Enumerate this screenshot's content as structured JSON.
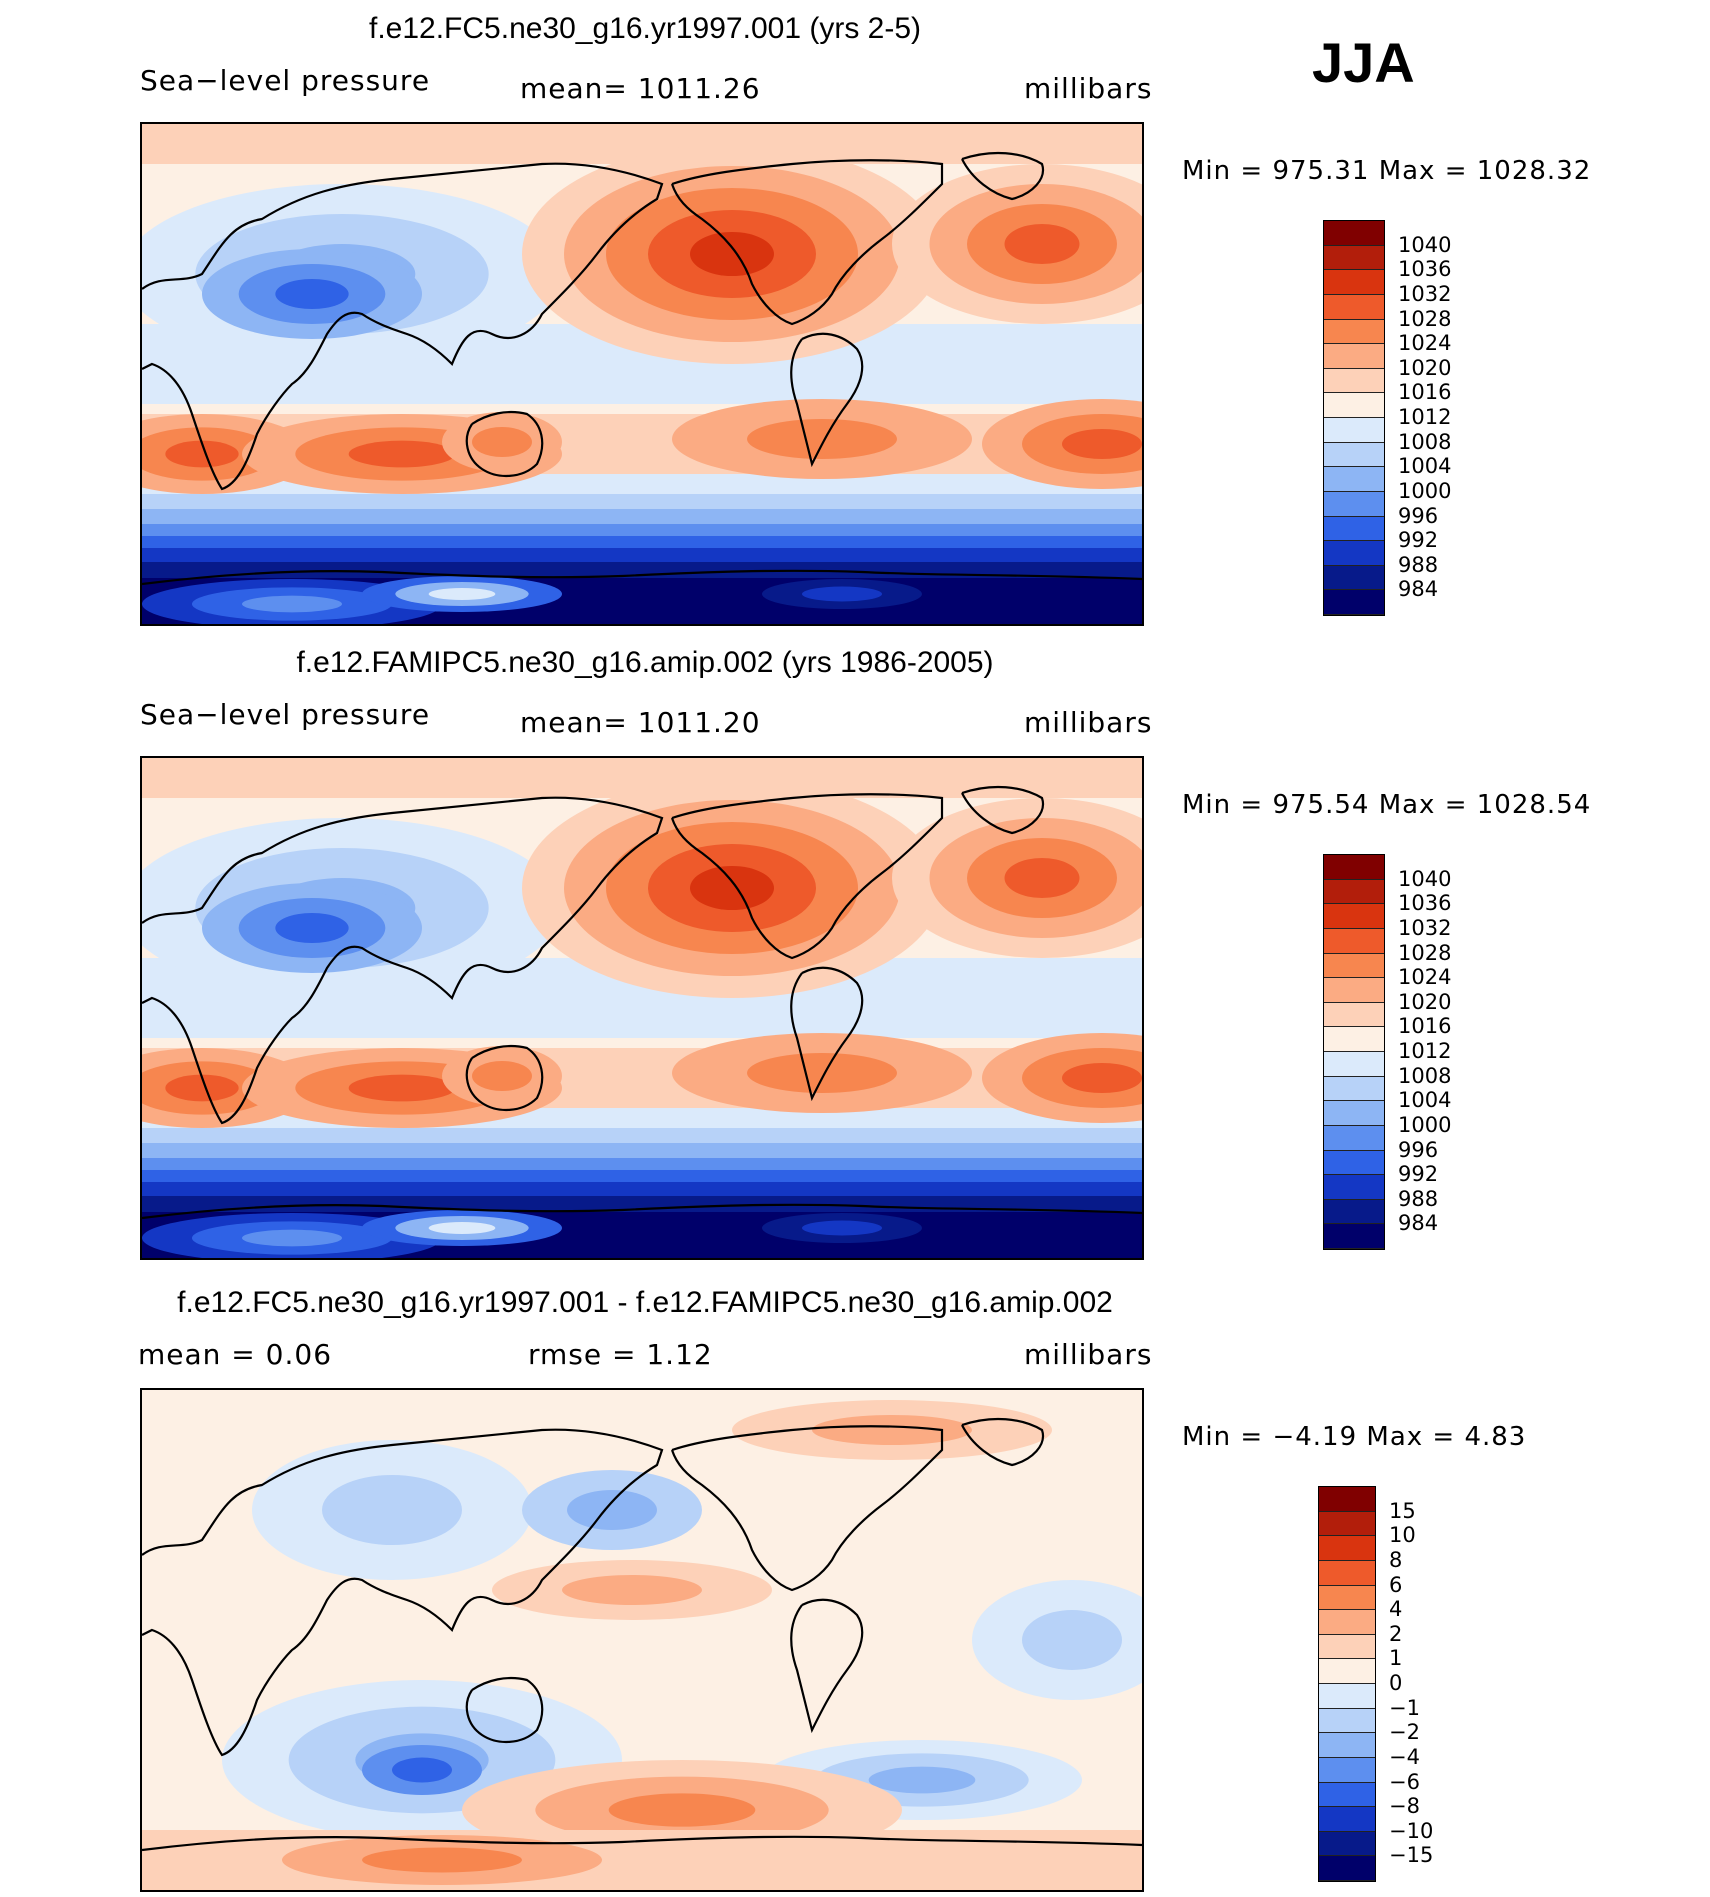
{
  "season": "JJA",
  "chart_data": [
    {
      "type": "heatmap",
      "title": "f.e12.FC5.ne30_g16.yr1997.001 (yrs 2-5)",
      "left_label": "Sea−level pressure",
      "center_label": "mean= 1011.26",
      "units": "millibars",
      "variable": "Sea-level pressure",
      "mean": 1011.26,
      "min_max_text": "Min = 975.31 Max = 1028.32",
      "min": 975.31,
      "max": 1028.32,
      "colorbar_labels": [
        "1040",
        "1036",
        "1032",
        "1028",
        "1024",
        "1020",
        "1016",
        "1012",
        "1008",
        "1004",
        "1000",
        "996",
        "992",
        "988",
        "984"
      ],
      "colorbar_colors": [
        "#800000",
        "#b21e0b",
        "#d9340f",
        "#ee5a2b",
        "#f7864f",
        "#fbab83",
        "#fdd1b8",
        "#fdf0e4",
        "#dbeafb",
        "#b7d2f8",
        "#8db5f4",
        "#5d8fef",
        "#2f62e6",
        "#1437c4",
        "#071a8a",
        "#00006a"
      ],
      "xlabel": "",
      "ylabel": ""
    },
    {
      "type": "heatmap",
      "title": "f.e12.FAMIPC5.ne30_g16.amip.002 (yrs 1986-2005)",
      "left_label": "Sea−level pressure",
      "center_label": "mean= 1011.20",
      "units": "millibars",
      "variable": "Sea-level pressure",
      "mean": 1011.2,
      "min_max_text": "Min = 975.54 Max = 1028.54",
      "min": 975.54,
      "max": 1028.54,
      "colorbar_labels": [
        "1040",
        "1036",
        "1032",
        "1028",
        "1024",
        "1020",
        "1016",
        "1012",
        "1008",
        "1004",
        "1000",
        "996",
        "992",
        "988",
        "984"
      ],
      "colorbar_colors": [
        "#800000",
        "#b21e0b",
        "#d9340f",
        "#ee5a2b",
        "#f7864f",
        "#fbab83",
        "#fdd1b8",
        "#fdf0e4",
        "#dbeafb",
        "#b7d2f8",
        "#8db5f4",
        "#5d8fef",
        "#2f62e6",
        "#1437c4",
        "#071a8a",
        "#00006a"
      ],
      "xlabel": "",
      "ylabel": ""
    },
    {
      "type": "heatmap",
      "title": "f.e12.FC5.ne30_g16.yr1997.001 - f.e12.FAMIPC5.ne30_g16.amip.002",
      "left_label": "mean = 0.06",
      "center_label": "rmse = 1.12",
      "units": "millibars",
      "mean": 0.06,
      "rmse": 1.12,
      "min_max_text": "Min = −4.19 Max = 4.83",
      "min": -4.19,
      "max": 4.83,
      "colorbar_labels": [
        "15",
        "10",
        "8",
        "6",
        "4",
        "2",
        "1",
        "0",
        "−1",
        "−2",
        "−4",
        "−6",
        "−8",
        "−10",
        "−15"
      ],
      "colorbar_colors": [
        "#800000",
        "#b21e0b",
        "#d9340f",
        "#ee5a2b",
        "#f7864f",
        "#fbab83",
        "#fdd1b8",
        "#fdf0e4",
        "#dbeafb",
        "#b7d2f8",
        "#8db5f4",
        "#5d8fef",
        "#2f62e6",
        "#1437c4",
        "#071a8a",
        "#00006a"
      ],
      "xlabel": "",
      "ylabel": ""
    }
  ]
}
